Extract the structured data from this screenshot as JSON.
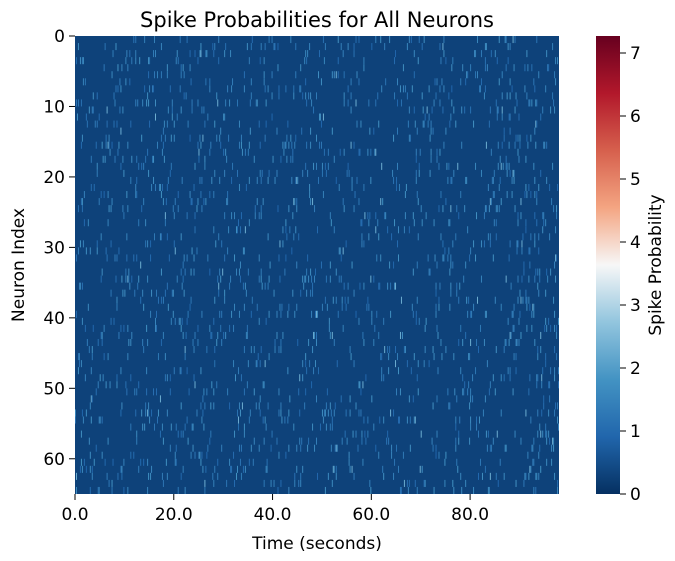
{
  "chart_data": {
    "type": "heatmap",
    "title": "Spike Probabilities for All Neurons",
    "xlabel": "Time (seconds)",
    "ylabel": "Neuron Index",
    "colorbar_label": "Spike Probability",
    "colormap": "RdBu_r",
    "x_ticks": [
      "0.0",
      "20.0",
      "40.0",
      "60.0",
      "80.0"
    ],
    "x_tick_values": [
      0,
      20,
      40,
      60,
      80
    ],
    "xlim": [
      0,
      98
    ],
    "y_ticks": [
      "0",
      "10",
      "20",
      "30",
      "40",
      "50",
      "60"
    ],
    "y_tick_values": [
      0,
      10,
      20,
      30,
      40,
      50,
      60
    ],
    "ylim": [
      65,
      0
    ],
    "colorbar_ticks": [
      "0",
      "1",
      "2",
      "3",
      "4",
      "5",
      "6",
      "7"
    ],
    "colorbar_tick_values": [
      0,
      1,
      2,
      3,
      4,
      5,
      6,
      7
    ],
    "colorbar_range": [
      0,
      7.27
    ],
    "n_neurons": 65,
    "n_time_bins": 490,
    "background_value": 0.3,
    "typical_spike_values": [
      0.9,
      1.8
    ],
    "max_spike_value": 2.3,
    "colors": {
      "low": "#053061",
      "high": "#67001f"
    }
  }
}
